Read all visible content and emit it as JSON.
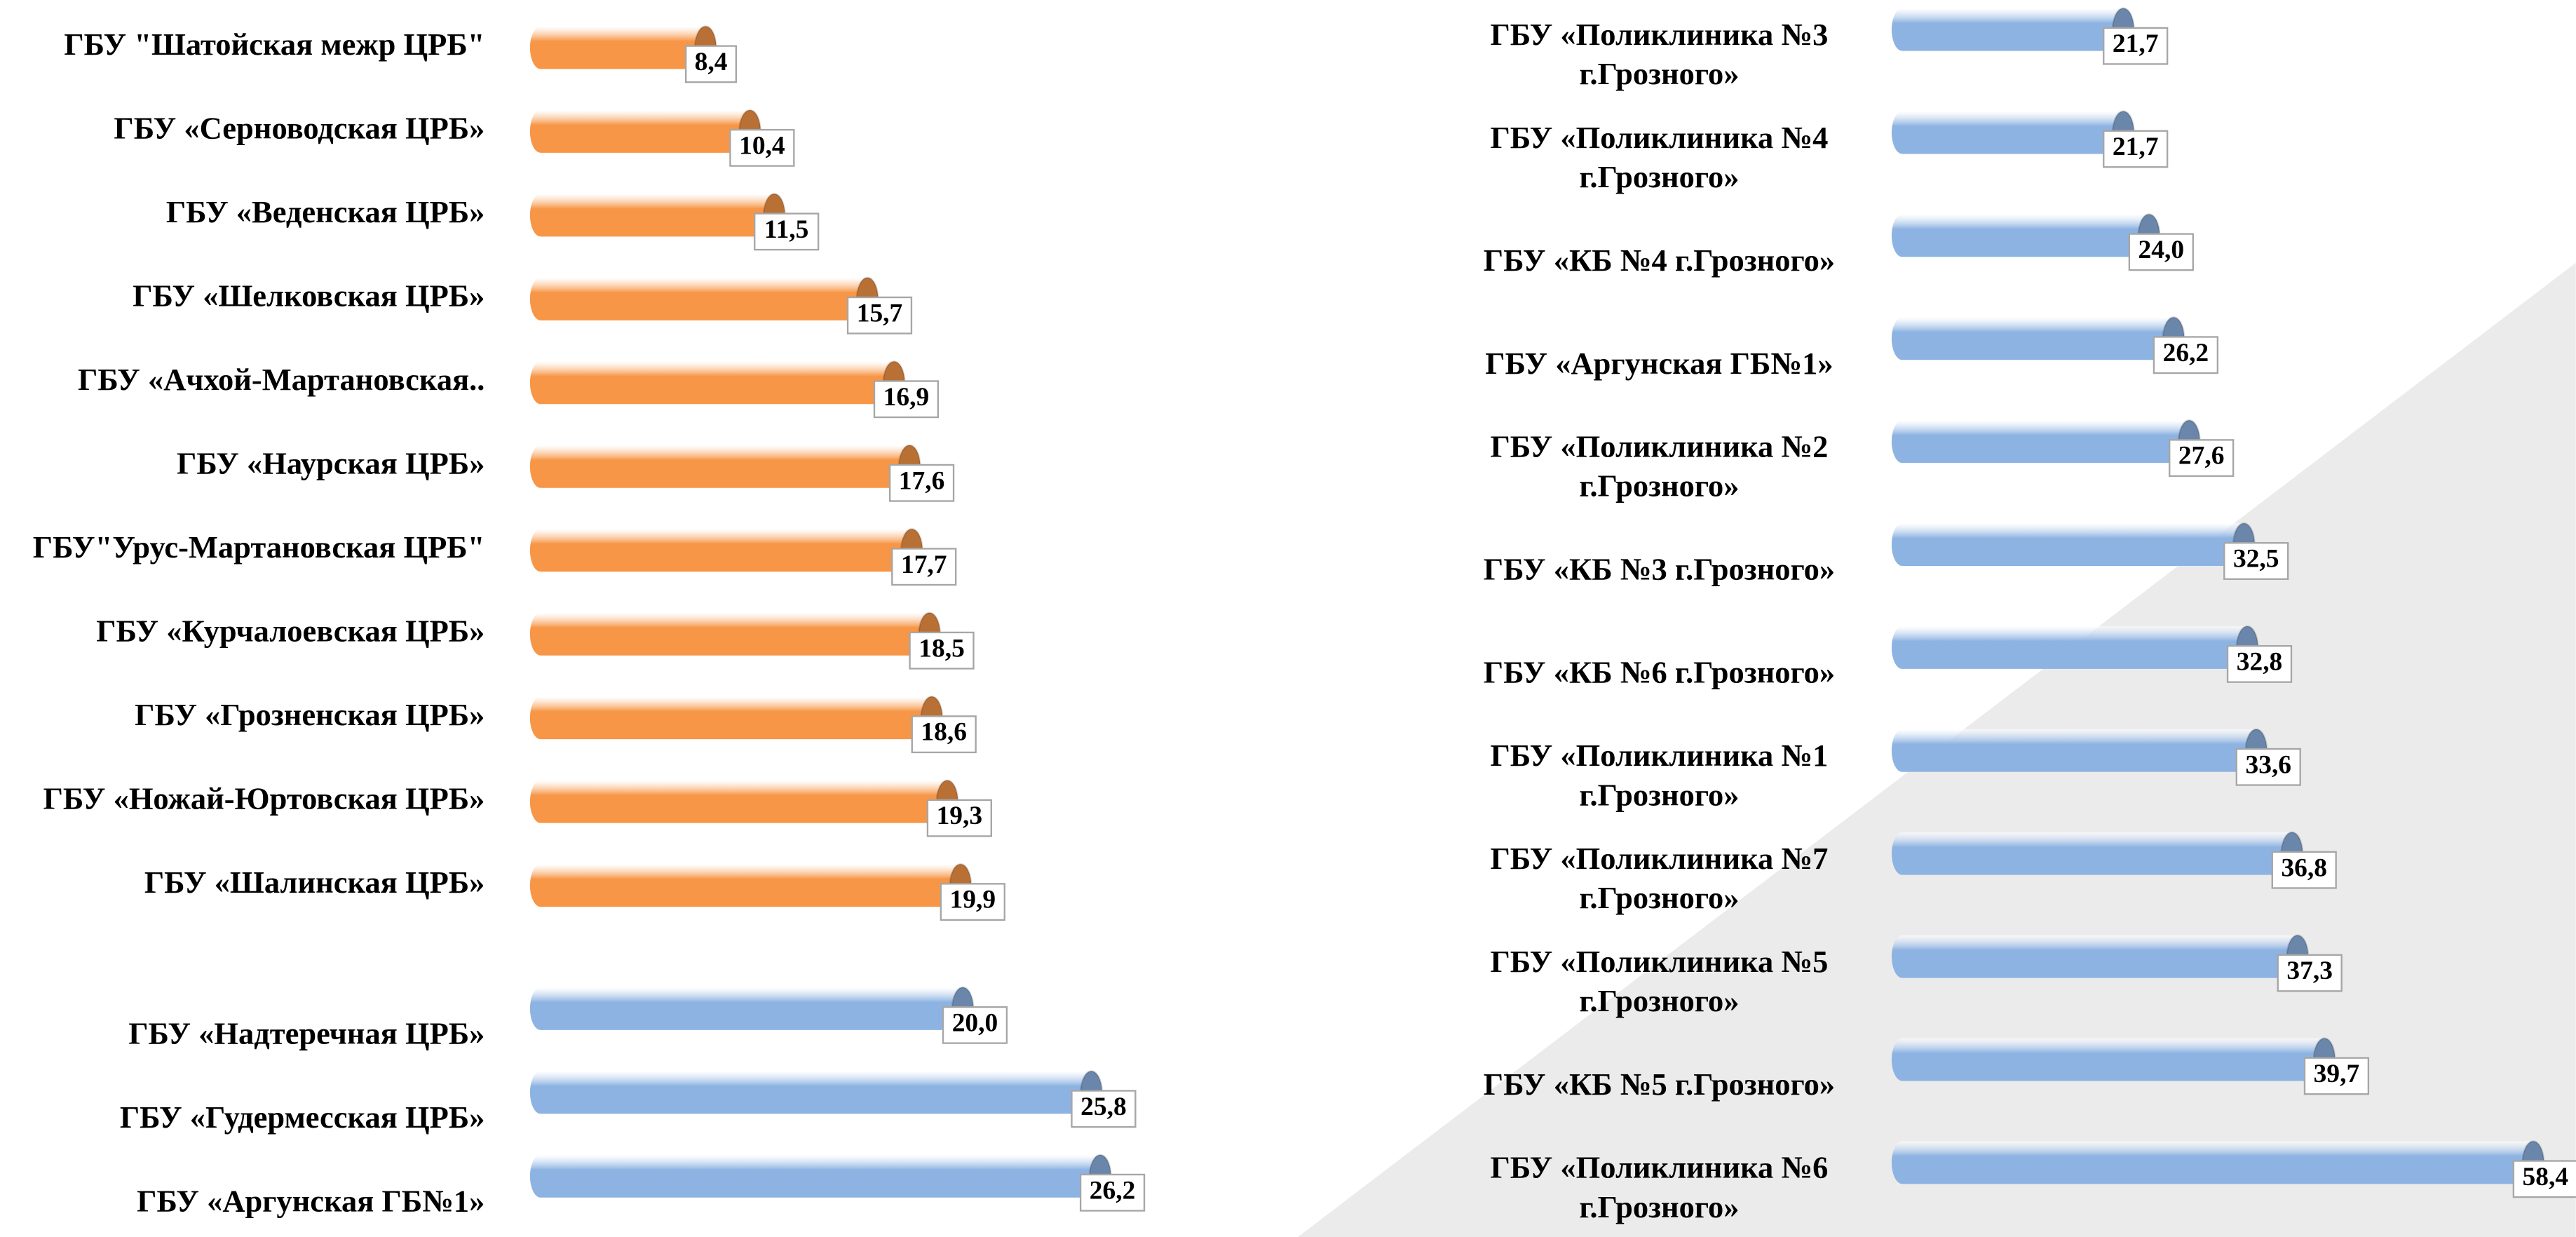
{
  "chart_data": [
    {
      "type": "bar",
      "categories": [
        "ГБУ \"Шатойская межр ЦРБ\"",
        "ГБУ «Серноводская ЦРБ»",
        "ГБУ «Веденская ЦРБ»",
        "ГБУ «Шелковская ЦРБ»",
        "ГБУ «Ачхой-Мартановская..",
        "ГБУ «Наурская ЦРБ»",
        "ГБУ\"Урус-Мартановская ЦРБ\"",
        "ГБУ «Курчалоевская ЦРБ»",
        "ГБУ «Грозненская ЦРБ»",
        "ГБУ «Ножай-Юртовская ЦРБ»",
        "ГБУ «Шалинская ЦРБ»",
        "ГБУ «Надтеречная ЦРБ»",
        "ГБУ «Гудермесская ЦРБ»",
        "ГБУ «Аргунская ГБ№1»"
      ],
      "values": [
        8.4,
        10.4,
        11.5,
        15.7,
        16.9,
        17.6,
        17.7,
        18.5,
        18.6,
        19.3,
        19.9,
        20.0,
        25.8,
        26.2
      ],
      "value_labels": [
        "8,4",
        "10,4",
        "11,5",
        "15,7",
        "16,9",
        "17,6",
        "17,7",
        "18,5",
        "18,6",
        "19,3",
        "19,9",
        "20,0",
        "25,8",
        "26,2"
      ],
      "colors": [
        "#f79646",
        "#f79646",
        "#f79646",
        "#f79646",
        "#f79646",
        "#f79646",
        "#f79646",
        "#f79646",
        "#f79646",
        "#f79646",
        "#f79646",
        "#8db3e2",
        "#8db3e2",
        "#8db3e2"
      ],
      "xlim": [
        0,
        40
      ]
    },
    {
      "type": "bar",
      "categories": [
        "ГБУ «Поликлиника №3\nг.Грозного»",
        "ГБУ «Поликлиника №4\nг.Грозного»",
        "ГБУ «КБ №4 г.Грозного»",
        "ГБУ «Аргунская ГБ№1»",
        "ГБУ «Поликлиника №2\nг.Грозного»",
        "ГБУ «КБ №3 г.Грозного»",
        "ГБУ «КБ №6 г.Грозного»",
        "ГБУ «Поликлиника №1\nг.Грозного»",
        "ГБУ «Поликлиника №7\nг.Грозного»",
        "ГБУ «Поликлиника №5\nг.Грозного»",
        "ГБУ «КБ №5 г.Грозного»",
        "ГБУ «Поликлиника №6\nг.Грозного»"
      ],
      "values": [
        21.7,
        21.7,
        24.0,
        26.2,
        27.6,
        32.5,
        32.8,
        33.6,
        36.8,
        37.3,
        39.7,
        58.4
      ],
      "value_labels": [
        "21,7",
        "21,7",
        "24,0",
        "26,2",
        "27,6",
        "32,5",
        "32,8",
        "33,6",
        "36,8",
        "37,3",
        "39,7",
        "58,4"
      ],
      "colors": [
        "#8db3e2",
        "#8db3e2",
        "#8db3e2",
        "#8db3e2",
        "#8db3e2",
        "#8db3e2",
        "#8db3e2",
        "#8db3e2",
        "#8db3e2",
        "#8db3e2",
        "#8db3e2",
        "#8db3e2"
      ],
      "xlim": [
        0,
        60
      ]
    }
  ]
}
